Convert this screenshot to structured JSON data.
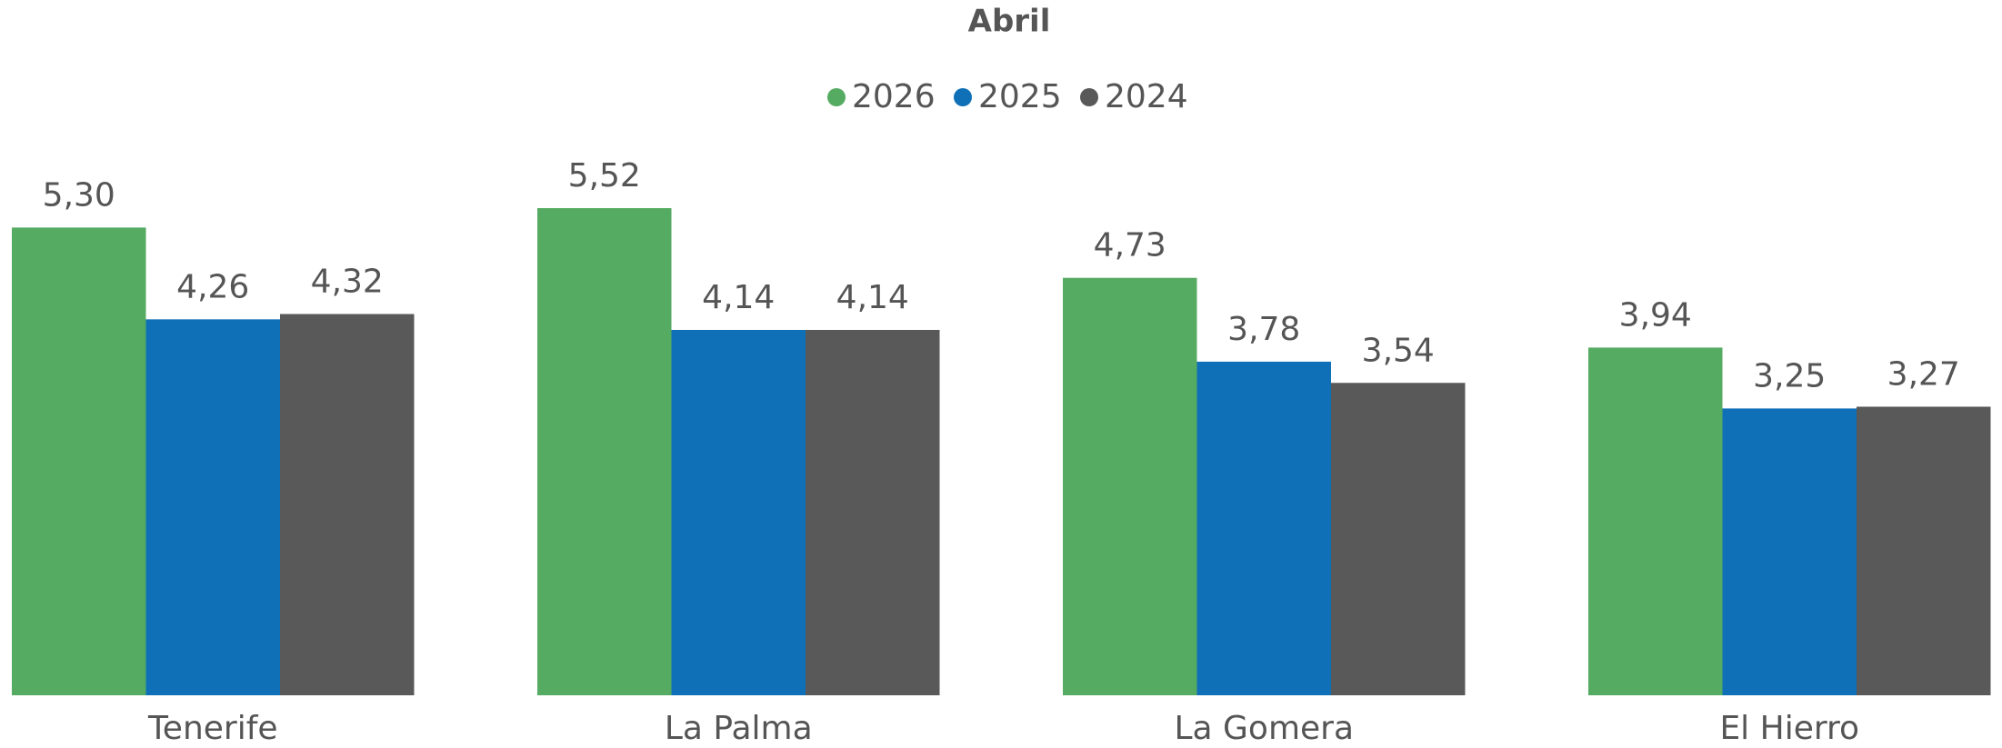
{
  "chart_data": {
    "type": "bar",
    "title": "Abril",
    "categories": [
      "Tenerife",
      "La Palma",
      "La Gomera",
      "El Hierro"
    ],
    "series": [
      {
        "name": "2026",
        "color": "#55ab62",
        "values": [
          5.3,
          5.52,
          4.73,
          3.94
        ],
        "value_labels": [
          "5,30",
          "5,52",
          "4,73",
          "3,94"
        ]
      },
      {
        "name": "2025",
        "color": "#0f70b7",
        "values": [
          4.26,
          4.14,
          3.78,
          3.25
        ],
        "value_labels": [
          "4,26",
          "4,14",
          "3,78",
          "3,25"
        ]
      },
      {
        "name": "2024",
        "color": "#595959",
        "values": [
          4.32,
          4.14,
          3.54,
          3.27
        ],
        "value_labels": [
          "4,32",
          "4,14",
          "3,54",
          "3,27"
        ]
      }
    ]
  }
}
